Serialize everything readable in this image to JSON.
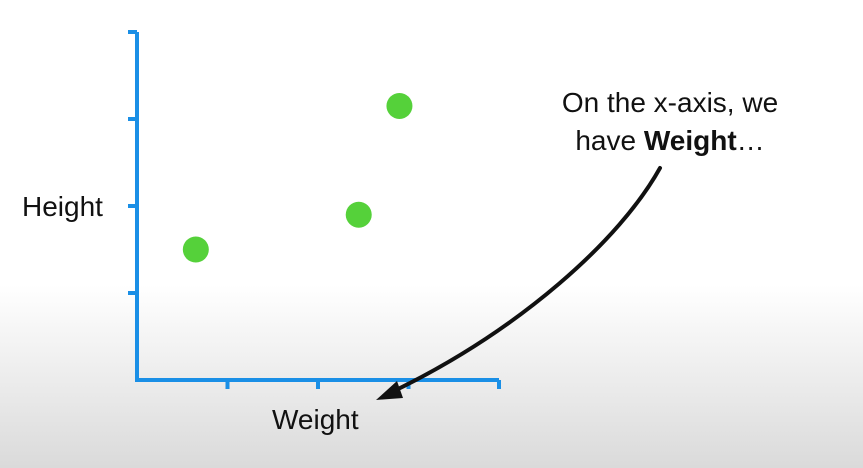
{
  "colors": {
    "axis": "#1a8fe6",
    "point": "#55d13a",
    "arrow": "#111111",
    "text": "#111111"
  },
  "chart_data": {
    "type": "scatter",
    "title": "",
    "xlabel": "Weight",
    "ylabel": "Height",
    "xlim": [
      0,
      4
    ],
    "ylim": [
      0,
      4
    ],
    "xticks": [
      1,
      2,
      3,
      4
    ],
    "yticks": [
      1,
      2,
      3,
      4
    ],
    "tick_labels_shown": false,
    "grid": false,
    "points": [
      {
        "x": 0.65,
        "y": 1.5
      },
      {
        "x": 2.45,
        "y": 1.9
      },
      {
        "x": 2.9,
        "y": 3.15
      }
    ]
  },
  "annotation": {
    "line1": "On the x-axis, we",
    "line2_prefix": "have ",
    "line2_bold": "Weight",
    "line2_suffix": "…"
  }
}
